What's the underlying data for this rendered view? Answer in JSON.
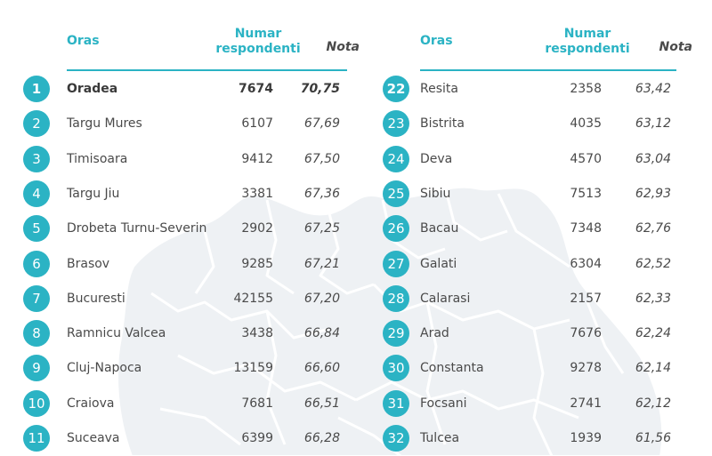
{
  "headers": {
    "city": "Oras",
    "respondents": "Numar\nrespondenti",
    "grade": "Nota"
  },
  "colors": {
    "accent": "#2bb3c4",
    "text": "#4a4a4a",
    "map": "#eef1f4"
  },
  "left_rows": [
    {
      "rank": "1",
      "city": "Oradea",
      "respondents": "7674",
      "grade": "70,75"
    },
    {
      "rank": "2",
      "city": "Targu Mures",
      "respondents": "6107",
      "grade": "67,69"
    },
    {
      "rank": "3",
      "city": "Timisoara",
      "respondents": "9412",
      "grade": "67,50"
    },
    {
      "rank": "4",
      "city": "Targu Jiu",
      "respondents": "3381",
      "grade": "67,36"
    },
    {
      "rank": "5",
      "city": "Drobeta Turnu-Severin",
      "respondents": "2902",
      "grade": "67,25"
    },
    {
      "rank": "6",
      "city": "Brasov",
      "respondents": "9285",
      "grade": "67,21"
    },
    {
      "rank": "7",
      "city": "Bucuresti",
      "respondents": "42155",
      "grade": "67,20"
    },
    {
      "rank": "8",
      "city": "Ramnicu Valcea",
      "respondents": "3438",
      "grade": "66,84"
    },
    {
      "rank": "9",
      "city": "Cluj-Napoca",
      "respondents": "13159",
      "grade": "66,60"
    },
    {
      "rank": "10",
      "city": "Craiova",
      "respondents": "7681",
      "grade": "66,51"
    },
    {
      "rank": "11",
      "city": "Suceava",
      "respondents": "6399",
      "grade": "66,28"
    }
  ],
  "right_rows": [
    {
      "rank": "22",
      "city": "Resita",
      "respondents": "2358",
      "grade": "63,42"
    },
    {
      "rank": "23",
      "city": "Bistrita",
      "respondents": "4035",
      "grade": "63,12"
    },
    {
      "rank": "24",
      "city": "Deva",
      "respondents": "4570",
      "grade": "63,04"
    },
    {
      "rank": "25",
      "city": "Sibiu",
      "respondents": "7513",
      "grade": "62,93"
    },
    {
      "rank": "26",
      "city": "Bacau",
      "respondents": "7348",
      "grade": "62,76"
    },
    {
      "rank": "27",
      "city": "Galati",
      "respondents": "6304",
      "grade": "62,52"
    },
    {
      "rank": "28",
      "city": "Calarasi",
      "respondents": "2157",
      "grade": "62,33"
    },
    {
      "rank": "29",
      "city": "Arad",
      "respondents": "7676",
      "grade": "62,24"
    },
    {
      "rank": "30",
      "city": "Constanta",
      "respondents": "9278",
      "grade": "62,14"
    },
    {
      "rank": "31",
      "city": "Focsani",
      "respondents": "2741",
      "grade": "62,12"
    },
    {
      "rank": "32",
      "city": "Tulcea",
      "respondents": "1939",
      "grade": "61,56"
    }
  ]
}
